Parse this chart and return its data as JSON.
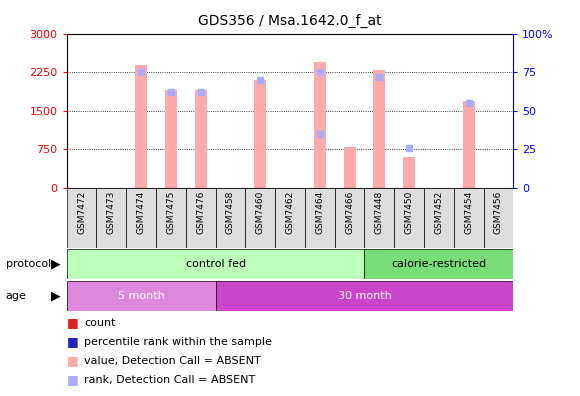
{
  "title": "GDS356 / Msa.1642.0_f_at",
  "samples": [
    "GSM7472",
    "GSM7473",
    "GSM7474",
    "GSM7475",
    "GSM7476",
    "GSM7458",
    "GSM7460",
    "GSM7462",
    "GSM7464",
    "GSM7466",
    "GSM7448",
    "GSM7450",
    "GSM7452",
    "GSM7454",
    "GSM7456"
  ],
  "absent_values": [
    0,
    0,
    2400,
    1900,
    1900,
    0,
    2100,
    0,
    2450,
    800,
    2300,
    600,
    0,
    1700,
    0
  ],
  "absent_ranks": [
    0,
    0,
    75,
    62,
    62,
    0,
    70,
    0,
    75,
    0,
    72,
    0,
    0,
    55,
    0
  ],
  "rank_absent_dots": [
    0,
    0,
    0,
    0,
    0,
    0,
    0,
    0,
    35,
    0,
    0,
    26,
    0,
    0,
    0
  ],
  "ylim_left": [
    0,
    3000
  ],
  "ylim_right": [
    0,
    100
  ],
  "yticks_left": [
    0,
    750,
    1500,
    2250,
    3000
  ],
  "yticks_right": [
    0,
    25,
    50,
    75,
    100
  ],
  "protocol_groups": [
    {
      "label": "control fed",
      "start": 0,
      "end": 10,
      "color": "#bbffbb"
    },
    {
      "label": "calorie-restricted",
      "start": 10,
      "end": 15,
      "color": "#77dd77"
    }
  ],
  "age_groups": [
    {
      "label": "5 month",
      "start": 0,
      "end": 5,
      "color": "#dd88dd"
    },
    {
      "label": "30 month",
      "start": 5,
      "end": 15,
      "color": "#cc44cc"
    }
  ],
  "bar_color_absent": "#ffaaaa",
  "rank_color_absent": "#aaaaff",
  "legend_items": [
    {
      "label": "count",
      "color": "#dd2222"
    },
    {
      "label": "percentile rank within the sample",
      "color": "#2222bb"
    },
    {
      "label": "value, Detection Call = ABSENT",
      "color": "#ffaaaa"
    },
    {
      "label": "rank, Detection Call = ABSENT",
      "color": "#aaaaff"
    }
  ]
}
